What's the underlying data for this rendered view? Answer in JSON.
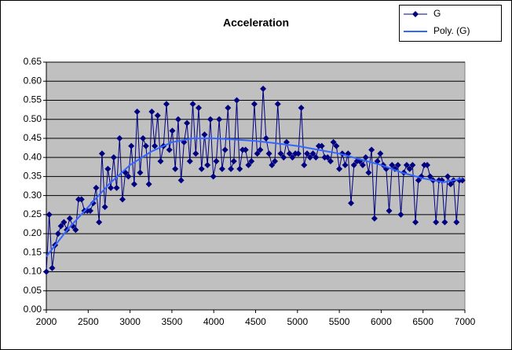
{
  "chart_data": {
    "type": "line",
    "title": "Acceleration",
    "xlim": [
      2000,
      7000
    ],
    "xticks": [
      2000,
      2500,
      3000,
      3500,
      4000,
      4500,
      5000,
      5500,
      6000,
      6500,
      7000
    ],
    "ylim": [
      0,
      0.65
    ],
    "yticks": [
      {
        "value": 0,
        "label": "0.00"
      },
      {
        "value": 0.05,
        "label": "0.05"
      },
      {
        "value": 0.1,
        "label": "0.10"
      },
      {
        "value": 0.15,
        "label": "0.15"
      },
      {
        "value": 0.2,
        "label": "0.20"
      },
      {
        "value": 0.25,
        "label": "0.25"
      },
      {
        "value": 0.3,
        "label": "0.30"
      },
      {
        "value": 0.35,
        "label": "0.35"
      },
      {
        "value": 0.4,
        "label": "0.40"
      },
      {
        "value": 0.45,
        "label": "0.45"
      },
      {
        "value": 0.5,
        "label": "0.50"
      },
      {
        "value": 0.55,
        "label": "0.55"
      },
      {
        "value": 0.6,
        "label": "0.60"
      },
      {
        "value": 0.65,
        "label": "0.65"
      }
    ],
    "grid": true,
    "legend": "top-right",
    "series": [
      {
        "name": "G",
        "color": "#000080",
        "marker": "diamond",
        "x": [
          2000,
          2035,
          2070,
          2105,
          2140,
          2175,
          2210,
          2245,
          2280,
          2315,
          2350,
          2385,
          2420,
          2455,
          2490,
          2525,
          2560,
          2595,
          2630,
          2665,
          2700,
          2735,
          2770,
          2805,
          2840,
          2875,
          2910,
          2945,
          2980,
          3015,
          3050,
          3085,
          3120,
          3155,
          3190,
          3225,
          3260,
          3295,
          3330,
          3365,
          3400,
          3435,
          3470,
          3505,
          3540,
          3575,
          3610,
          3645,
          3680,
          3715,
          3750,
          3785,
          3820,
          3855,
          3890,
          3925,
          3960,
          3995,
          4030,
          4065,
          4100,
          4135,
          4170,
          4205,
          4240,
          4275,
          4310,
          4345,
          4380,
          4415,
          4450,
          4485,
          4520,
          4555,
          4590,
          4625,
          4660,
          4695,
          4730,
          4765,
          4800,
          4835,
          4870,
          4905,
          4940,
          4975,
          5010,
          5045,
          5080,
          5115,
          5150,
          5185,
          5220,
          5255,
          5290,
          5325,
          5360,
          5395,
          5430,
          5465,
          5500,
          5535,
          5570,
          5605,
          5640,
          5675,
          5710,
          5745,
          5780,
          5815,
          5850,
          5885,
          5920,
          5955,
          5990,
          6025,
          6060,
          6095,
          6130,
          6165,
          6200,
          6235,
          6270,
          6305,
          6340,
          6375,
          6410,
          6445,
          6480,
          6515,
          6550,
          6585,
          6620,
          6655,
          6690,
          6725,
          6760,
          6795,
          6830,
          6865,
          6900,
          6935,
          6970
        ],
        "values": [
          0.1,
          0.25,
          0.11,
          0.17,
          0.2,
          0.22,
          0.23,
          0.21,
          0.24,
          0.22,
          0.21,
          0.29,
          0.29,
          0.26,
          0.26,
          0.26,
          0.28,
          0.32,
          0.23,
          0.41,
          0.27,
          0.37,
          0.32,
          0.4,
          0.32,
          0.45,
          0.29,
          0.36,
          0.35,
          0.43,
          0.33,
          0.52,
          0.36,
          0.45,
          0.43,
          0.33,
          0.52,
          0.43,
          0.51,
          0.39,
          0.43,
          0.54,
          0.42,
          0.47,
          0.37,
          0.5,
          0.34,
          0.44,
          0.49,
          0.39,
          0.54,
          0.41,
          0.53,
          0.37,
          0.46,
          0.38,
          0.5,
          0.35,
          0.39,
          0.5,
          0.37,
          0.42,
          0.53,
          0.37,
          0.39,
          0.55,
          0.37,
          0.42,
          0.42,
          0.38,
          0.39,
          0.54,
          0.41,
          0.42,
          0.58,
          0.45,
          0.41,
          0.38,
          0.39,
          0.54,
          0.41,
          0.4,
          0.44,
          0.41,
          0.4,
          0.41,
          0.41,
          0.53,
          0.38,
          0.41,
          0.4,
          0.41,
          0.4,
          0.43,
          0.43,
          0.4,
          0.4,
          0.39,
          0.44,
          0.43,
          0.37,
          0.41,
          0.38,
          0.41,
          0.28,
          0.38,
          0.39,
          0.39,
          0.38,
          0.4,
          0.36,
          0.42,
          0.24,
          0.39,
          0.41,
          0.38,
          0.37,
          0.26,
          0.38,
          0.37,
          0.38,
          0.25,
          0.36,
          0.38,
          0.37,
          0.38,
          0.23,
          0.34,
          0.35,
          0.38,
          0.38,
          0.35,
          0.34,
          0.23,
          0.34,
          0.34,
          0.23,
          0.35,
          0.33,
          0.34,
          0.23,
          0.34,
          0.34
        ]
      },
      {
        "name": "Poly. (G)",
        "color": "#3366ff",
        "marker": "none",
        "x": [
          2000,
          2250,
          2500,
          2750,
          3000,
          3250,
          3500,
          3750,
          4000,
          4250,
          4500,
          4750,
          5000,
          5250,
          5500,
          5750,
          6000,
          6250,
          6500,
          6750,
          6970
        ],
        "values": [
          0.14,
          0.21,
          0.27,
          0.33,
          0.38,
          0.415,
          0.44,
          0.45,
          0.45,
          0.447,
          0.443,
          0.437,
          0.43,
          0.42,
          0.41,
          0.395,
          0.38,
          0.36,
          0.345,
          0.335,
          0.345
        ]
      }
    ]
  }
}
